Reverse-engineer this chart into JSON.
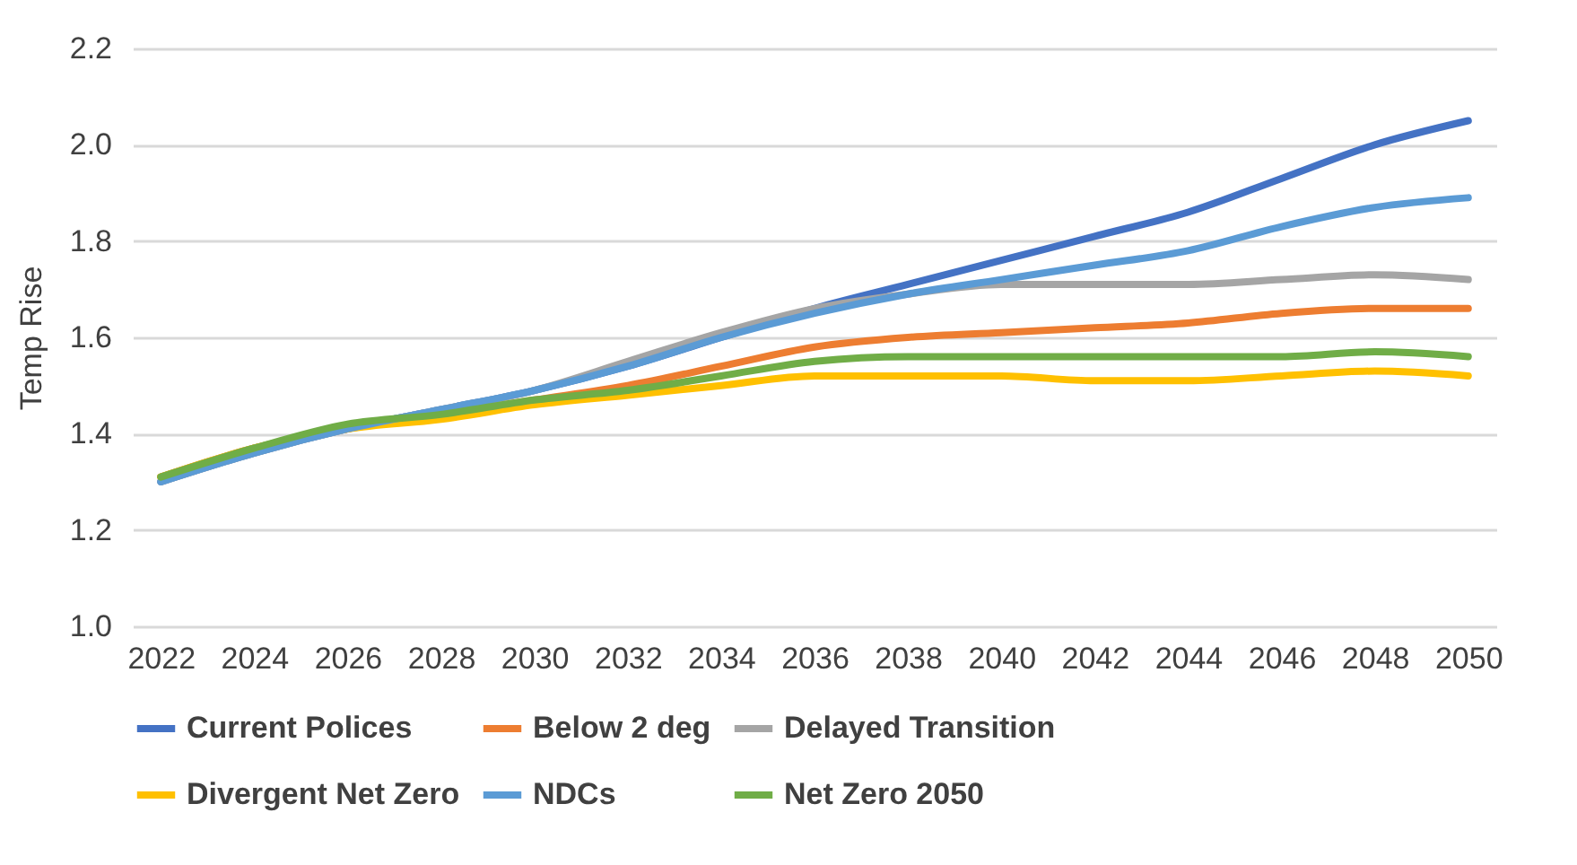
{
  "chart_data": {
    "type": "line",
    "ylabel": "Temp Rise",
    "categories": [
      "2022",
      "2024",
      "2026",
      "2028",
      "2030",
      "2032",
      "2034",
      "2036",
      "2038",
      "2040",
      "2042",
      "2044",
      "2046",
      "2048",
      "2050"
    ],
    "series": [
      {
        "name": "Current Polices",
        "color": "#4472c4",
        "values": [
          1.3,
          1.36,
          1.41,
          1.45,
          1.49,
          1.54,
          1.6,
          1.66,
          1.71,
          1.76,
          1.81,
          1.86,
          1.93,
          2.0,
          2.05
        ]
      },
      {
        "name": "Below 2 deg",
        "color": "#ed7d31",
        "values": [
          1.31,
          1.37,
          1.41,
          1.44,
          1.47,
          1.5,
          1.54,
          1.58,
          1.6,
          1.61,
          1.62,
          1.63,
          1.65,
          1.66,
          1.66
        ]
      },
      {
        "name": "Delayed Transition",
        "color": "#a5a5a5",
        "values": [
          1.3,
          1.36,
          1.41,
          1.45,
          1.49,
          1.55,
          1.61,
          1.66,
          1.69,
          1.71,
          1.71,
          1.71,
          1.72,
          1.73,
          1.72
        ]
      },
      {
        "name": "Divergent Net Zero",
        "color": "#ffc000",
        "values": [
          1.31,
          1.37,
          1.41,
          1.43,
          1.46,
          1.48,
          1.5,
          1.52,
          1.52,
          1.52,
          1.51,
          1.51,
          1.52,
          1.53,
          1.52
        ]
      },
      {
        "name": "NDCs",
        "color": "#5b9bd5",
        "values": [
          1.3,
          1.36,
          1.41,
          1.45,
          1.49,
          1.54,
          1.6,
          1.65,
          1.69,
          1.72,
          1.75,
          1.78,
          1.83,
          1.87,
          1.89
        ]
      },
      {
        "name": "Net Zero 2050",
        "color": "#70ad47",
        "values": [
          1.31,
          1.37,
          1.42,
          1.44,
          1.47,
          1.49,
          1.52,
          1.55,
          1.56,
          1.56,
          1.56,
          1.56,
          1.56,
          1.57,
          1.56
        ]
      }
    ],
    "ylim": [
      1.0,
      2.2
    ],
    "yticks": [
      {
        "value": 1,
        "label": "1.0"
      },
      1.2,
      1.4,
      1.6,
      1.8,
      {
        "value": 2,
        "label": "2.0"
      },
      2.2
    ],
    "grid": "y",
    "legend": "bottom",
    "marker": "none",
    "line_style": "solid"
  }
}
